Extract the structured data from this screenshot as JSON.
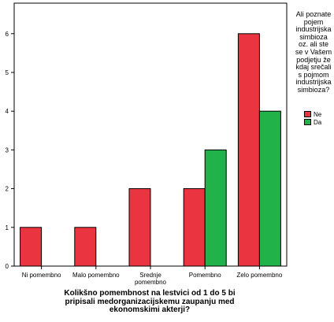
{
  "chart_data": {
    "type": "bar",
    "categories": [
      "Ni pomembno",
      "Malo pomembno",
      "Srednje\npomembno",
      "Pomembno",
      "Zelo pomembno"
    ],
    "series": [
      {
        "name": "Ne",
        "values": [
          1,
          1,
          2,
          2,
          6
        ],
        "color": "#ea3540"
      },
      {
        "name": "Da",
        "values": [
          0,
          0,
          0,
          3,
          4
        ],
        "color": "#22b24a"
      }
    ],
    "ylim": [
      0,
      7
    ],
    "yticks": [
      0,
      1,
      2,
      3,
      4,
      5,
      6
    ],
    "grid": false,
    "xlabel": "Kolikšno pomembnost na lestvici od 1 do 5 bi\npripisali medorganizacijskemu zaupanju med\nekonomskimi akterji?",
    "ylabel": "",
    "legend_title": "Ali poznate\npojem\nindustrijska\nsimbioza\noz. ali ste\nse v Vašem\npodjetju že\nkdaj srečali\ns pojmom\nindustrijska\nsimbioza?",
    "legend_position": "right"
  }
}
